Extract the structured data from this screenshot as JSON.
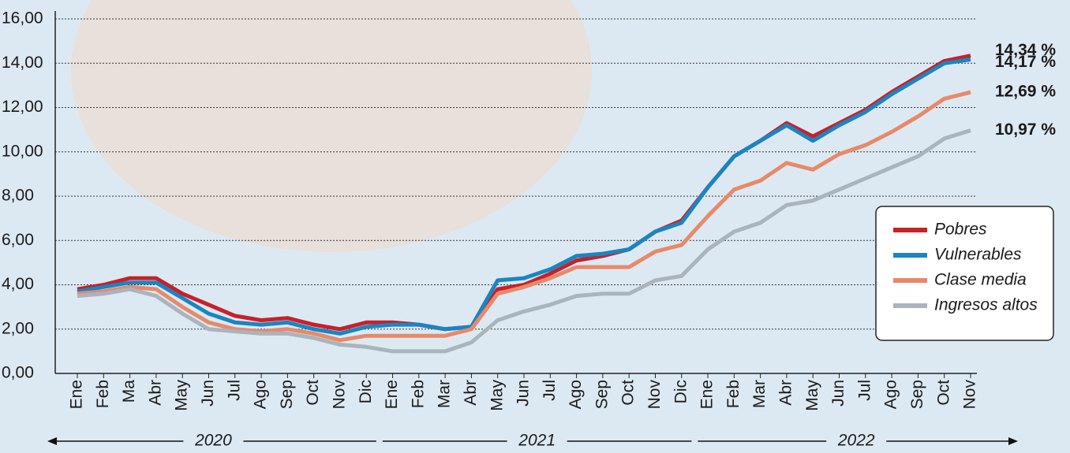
{
  "chart_data": {
    "type": "line",
    "categories": [
      "Ene",
      "Feb",
      "Ma",
      "Abr",
      "May",
      "Jun",
      "Jul",
      "Ago",
      "Sep",
      "Oct",
      "Nov",
      "Dic",
      "Ene",
      "Feb",
      "Mar",
      "Abr",
      "May",
      "Jun",
      "Jul",
      "Ago",
      "Sep",
      "Oct",
      "Nov",
      "Dic",
      "Ene",
      "Feb",
      "Mar",
      "Abr",
      "May",
      "Jun",
      "Jul",
      "Ago",
      "Sep",
      "Oct",
      "Nov"
    ],
    "x_groups": [
      {
        "label": "2020",
        "span": 12
      },
      {
        "label": "2021",
        "span": 12
      },
      {
        "label": "2022",
        "span": 11
      }
    ],
    "series": [
      {
        "name": "Pobres",
        "color": "#c8202a",
        "values": [
          3.8,
          4.0,
          4.3,
          4.3,
          3.6,
          3.1,
          2.6,
          2.4,
          2.5,
          2.2,
          2.0,
          2.3,
          2.3,
          2.2,
          2.0,
          2.1,
          3.8,
          4.0,
          4.5,
          5.1,
          5.3,
          5.6,
          6.4,
          6.9,
          8.4,
          9.8,
          10.5,
          11.3,
          10.7,
          11.3,
          11.9,
          12.7,
          13.4,
          14.1,
          14.34
        ],
        "value_labels": [
          null,
          null,
          null,
          null,
          null,
          null,
          null,
          null,
          null,
          null,
          null,
          null,
          null,
          null,
          null,
          null,
          null,
          null,
          null,
          null,
          null,
          null,
          null,
          null,
          null,
          null,
          null,
          null,
          null,
          null,
          null,
          null,
          null,
          null,
          "14,34 %"
        ]
      },
      {
        "name": "Vulnerables",
        "color": "#1a85c2",
        "values": [
          3.7,
          3.9,
          4.1,
          4.1,
          3.4,
          2.7,
          2.3,
          2.2,
          2.3,
          2.0,
          1.8,
          2.1,
          2.2,
          2.2,
          2.0,
          2.1,
          4.2,
          4.3,
          4.7,
          5.3,
          5.4,
          5.6,
          6.4,
          6.8,
          8.4,
          9.8,
          10.5,
          11.2,
          10.5,
          11.2,
          11.8,
          12.6,
          13.3,
          14.0,
          14.17
        ],
        "value_labels": [
          null,
          null,
          null,
          null,
          null,
          null,
          null,
          null,
          null,
          null,
          null,
          null,
          null,
          null,
          null,
          null,
          null,
          null,
          null,
          null,
          null,
          null,
          null,
          null,
          null,
          null,
          null,
          null,
          null,
          null,
          null,
          null,
          null,
          null,
          "14,17 %"
        ]
      },
      {
        "name": "Clase media",
        "color": "#e8896a",
        "values": [
          3.6,
          3.7,
          3.9,
          3.8,
          3.0,
          2.3,
          2.0,
          1.9,
          2.0,
          1.8,
          1.5,
          1.7,
          1.7,
          1.7,
          1.7,
          2.0,
          3.6,
          3.9,
          4.3,
          4.8,
          4.8,
          4.8,
          5.5,
          5.8,
          7.1,
          8.3,
          8.7,
          9.5,
          9.2,
          9.9,
          10.3,
          10.9,
          11.6,
          12.4,
          12.69
        ],
        "value_labels": [
          null,
          null,
          null,
          null,
          null,
          null,
          null,
          null,
          null,
          null,
          null,
          null,
          null,
          null,
          null,
          null,
          null,
          null,
          null,
          null,
          null,
          null,
          null,
          null,
          null,
          null,
          null,
          null,
          null,
          null,
          null,
          null,
          null,
          null,
          "12,69 %"
        ]
      },
      {
        "name": "Ingresos altos",
        "color": "#a9b4bd",
        "values": [
          3.5,
          3.6,
          3.8,
          3.5,
          2.7,
          2.0,
          1.9,
          1.8,
          1.8,
          1.6,
          1.3,
          1.2,
          1.0,
          1.0,
          1.0,
          1.4,
          2.4,
          2.8,
          3.1,
          3.5,
          3.6,
          3.6,
          4.2,
          4.4,
          5.6,
          6.4,
          6.8,
          7.6,
          7.8,
          8.3,
          8.8,
          9.3,
          9.8,
          10.6,
          10.97
        ],
        "value_labels": [
          null,
          null,
          null,
          null,
          null,
          null,
          null,
          null,
          null,
          null,
          null,
          null,
          null,
          null,
          null,
          null,
          null,
          null,
          null,
          null,
          null,
          null,
          null,
          null,
          null,
          null,
          null,
          null,
          null,
          null,
          null,
          null,
          null,
          null,
          "10,97 %"
        ]
      }
    ],
    "ylim": [
      0,
      16
    ],
    "yticks": [
      {
        "value": 0,
        "label": "0,00"
      },
      {
        "value": 2,
        "label": "2,00"
      },
      {
        "value": 4,
        "label": "4,00"
      },
      {
        "value": 6,
        "label": "6,00"
      },
      {
        "value": 8,
        "label": "8,00"
      },
      {
        "value": 10,
        "label": "10,00"
      },
      {
        "value": 12,
        "label": "12,00"
      },
      {
        "value": 14,
        "label": "14,00"
      },
      {
        "value": 16,
        "label": "16,00"
      }
    ],
    "grid": true,
    "legend": "lower right"
  }
}
